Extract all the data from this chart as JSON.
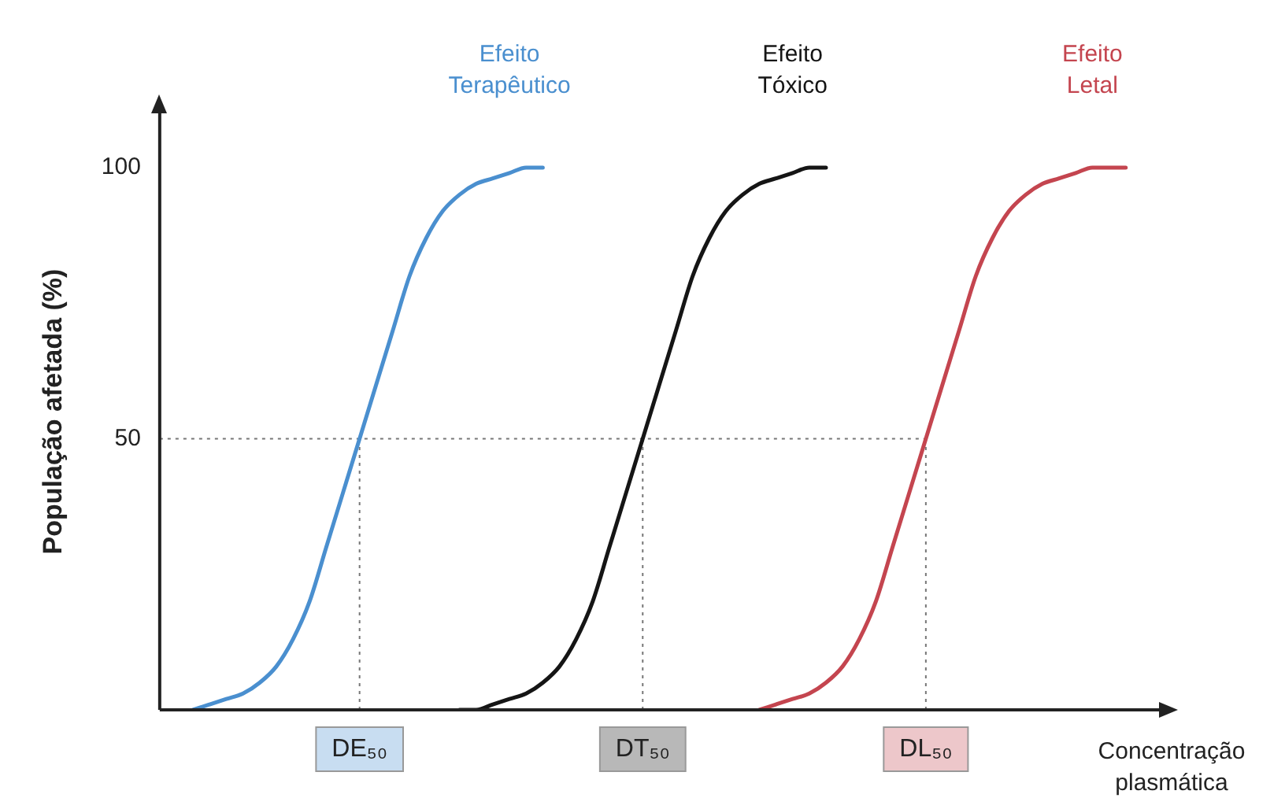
{
  "chart_data": {
    "type": "line",
    "ylabel": "População afetada (%)",
    "xlabel": "Concentração plasmática",
    "categories": [
      null,
      null,
      null,
      null,
      null,
      null,
      null,
      null,
      null,
      null,
      null,
      null,
      "DE₅₀",
      null,
      null,
      null,
      null,
      null,
      null,
      null,
      null,
      null,
      null,
      null,
      null,
      null,
      null,
      null,
      null,
      "DT₅₀",
      null,
      null,
      null,
      null,
      null,
      null,
      null,
      null,
      null,
      null,
      null,
      null,
      null,
      null,
      null,
      null,
      "DL₅₀",
      null,
      null,
      null,
      null,
      null,
      null,
      null,
      null,
      null,
      null,
      null,
      null,
      null,
      null
    ],
    "series": [
      {
        "name": "Efeito Terapêutico",
        "color": "#4a8fcf",
        "values": [
          null,
          null,
          0,
          1,
          2,
          3,
          5,
          8,
          13,
          20,
          30,
          40,
          50,
          60,
          70,
          80,
          87,
          92,
          95,
          97,
          98,
          99,
          100,
          100,
          null,
          null,
          null,
          null,
          null,
          null,
          null,
          null,
          null,
          null,
          null,
          null,
          null,
          null,
          null,
          null,
          null,
          null,
          null,
          null,
          null,
          null,
          null,
          null,
          null,
          null,
          null,
          null,
          null,
          null,
          null,
          null,
          null,
          null,
          null,
          null,
          null
        ]
      },
      {
        "name": "Efeito Tóxico",
        "color": "#151515",
        "values": [
          null,
          null,
          null,
          null,
          null,
          null,
          null,
          null,
          null,
          null,
          null,
          null,
          null,
          null,
          null,
          null,
          null,
          null,
          0,
          0,
          1,
          2,
          3,
          5,
          8,
          13,
          20,
          30,
          40,
          50,
          60,
          70,
          80,
          87,
          92,
          95,
          97,
          98,
          99,
          100,
          100,
          null,
          null,
          null,
          null,
          null,
          null,
          null,
          null,
          null,
          null,
          null,
          null,
          null,
          null,
          null,
          null,
          null,
          null,
          null,
          null
        ]
      },
      {
        "name": "Efeito Letal",
        "color": "#c4454f",
        "values": [
          null,
          null,
          null,
          null,
          null,
          null,
          null,
          null,
          null,
          null,
          null,
          null,
          null,
          null,
          null,
          null,
          null,
          null,
          null,
          null,
          null,
          null,
          null,
          null,
          null,
          null,
          null,
          null,
          null,
          null,
          null,
          null,
          null,
          null,
          null,
          null,
          0,
          1,
          2,
          3,
          5,
          8,
          13,
          20,
          30,
          40,
          50,
          60,
          70,
          80,
          87,
          92,
          95,
          97,
          98,
          99,
          100,
          100,
          100,
          null,
          null
        ]
      }
    ],
    "ylim": [
      0,
      110
    ],
    "yticks": [
      50,
      100
    ],
    "grid": false,
    "legend": false,
    "marker": "none",
    "line_style": "solid",
    "ref_lines": [
      {
        "axis": "y",
        "value": 50,
        "color": "#777777",
        "line_style": "dotted"
      },
      {
        "axis": "x",
        "value": "DE₅₀",
        "color": "#777777",
        "line_style": "dotted"
      },
      {
        "axis": "x",
        "value": "DT₅₀",
        "color": "#777777",
        "line_style": "dotted"
      },
      {
        "axis": "x",
        "value": "DL₅₀",
        "color": "#777777",
        "line_style": "dotted"
      }
    ]
  }
}
